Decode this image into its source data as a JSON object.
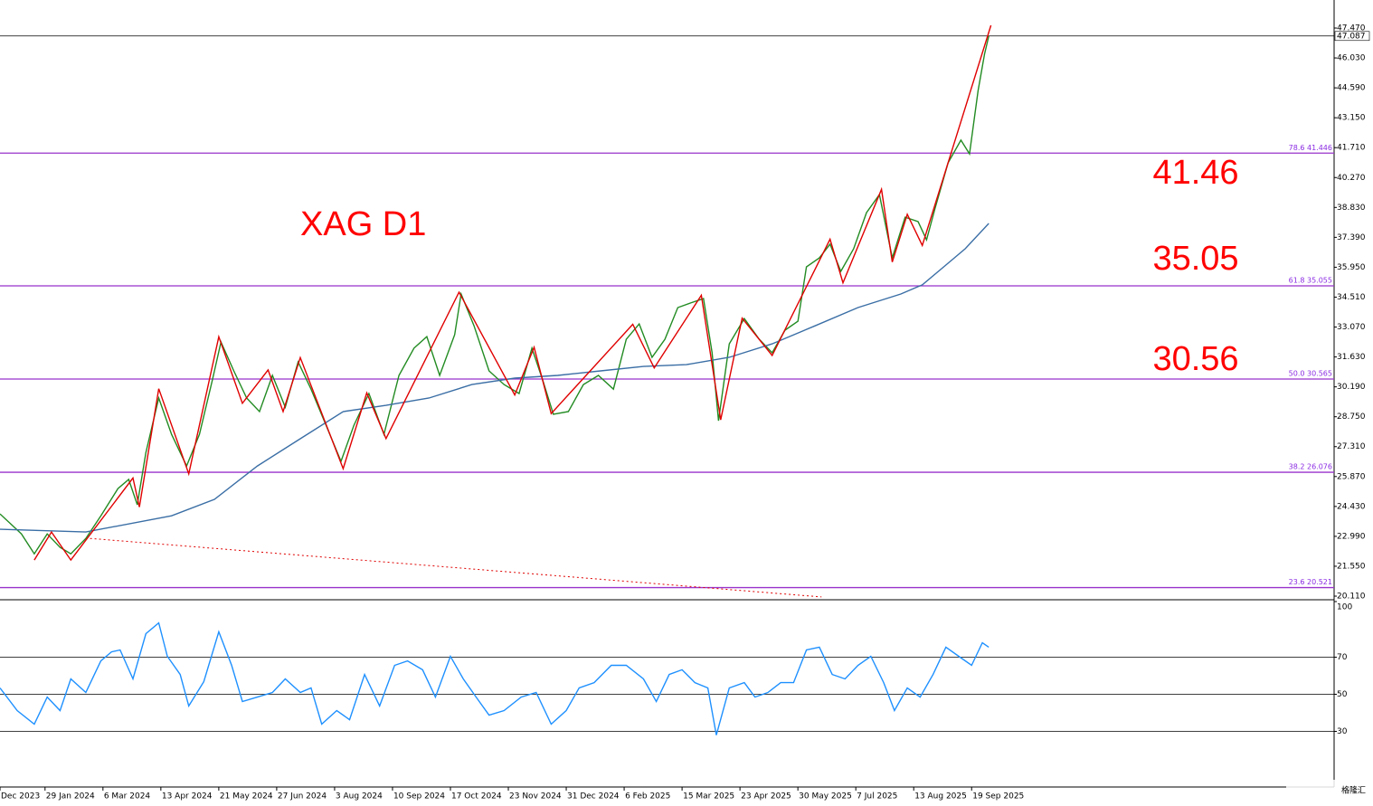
{
  "chart_data": [
    {
      "type": "line",
      "title": "XAG D1",
      "x": [
        0,
        10,
        16,
        22,
        28,
        33,
        40,
        47,
        55,
        60,
        64,
        68,
        74,
        80,
        87,
        93,
        99,
        103,
        109,
        115,
        121,
        127,
        133,
        139,
        145,
        152,
        159,
        165,
        172,
        179,
        186,
        193,
        199,
        205,
        212,
        215,
        221,
        228,
        235,
        242,
        248,
        253,
        258,
        265,
        272,
        279,
        286,
        292,
        298,
        304,
        310,
        316,
        322,
        328,
        332,
        335,
        340,
        347,
        354,
        360,
        366,
        372,
        376,
        382,
        387,
        392,
        398,
        404,
        410,
        416,
        422,
        428,
        432,
        436,
        442,
        448,
        452,
        456,
        459,
        461
      ],
      "series": [
        {
          "color": "#228b22",
          "values": [
            24.07,
            23.11,
            22.15,
            23.11,
            22.46,
            22.15,
            22.89,
            23.98,
            25.29,
            25.73,
            24.51,
            27.03,
            29.65,
            27.9,
            26.38,
            27.9,
            30.52,
            32.35,
            30.96,
            29.65,
            29.0,
            30.74,
            29.21,
            31.39,
            30.08,
            28.34,
            26.6,
            28.34,
            29.87,
            27.9,
            30.74,
            32.05,
            32.61,
            30.74,
            32.7,
            34.66,
            33.13,
            30.96,
            30.3,
            29.87,
            32.05,
            30.52,
            28.87,
            29.0,
            30.3,
            30.74,
            30.08,
            32.48,
            33.22,
            31.61,
            32.48,
            34.01,
            34.23,
            34.44,
            31.83,
            28.56,
            32.26,
            33.48,
            32.48,
            31.83,
            32.92,
            33.35,
            35.97,
            36.4,
            37.06,
            35.75,
            36.84,
            38.58,
            39.45,
            36.4,
            38.36,
            38.15,
            37.27,
            38.8,
            40.98,
            42.07,
            41.41,
            44.46,
            46.21,
            47.08
          ]
        },
        {
          "color": "#3a6ea5",
          "x": [
            0,
            40,
            80,
            100,
            120,
            140,
            160,
            180,
            200,
            220,
            240,
            260,
            280,
            300,
            320,
            340,
            360,
            380,
            400,
            420,
            430,
            440,
            450,
            461
          ],
          "values": [
            23.33,
            23.2,
            23.98,
            24.77,
            26.38,
            27.69,
            29.0,
            29.3,
            29.65,
            30.3,
            30.61,
            30.74,
            30.96,
            31.17,
            31.26,
            31.61,
            32.26,
            33.13,
            34.01,
            34.66,
            35.1,
            35.97,
            36.84,
            38.06
          ]
        },
        {
          "color": "#e00000",
          "x": [
            16,
            24,
            33,
            62,
            65,
            74,
            88,
            102,
            113,
            125,
            132,
            140,
            160,
            171,
            180,
            214,
            240,
            249,
            257,
            295,
            305,
            327,
            336,
            346,
            360,
            387,
            393,
            411,
            416,
            423,
            430,
            462
          ],
          "values": [
            21.85,
            23.2,
            21.85,
            25.8,
            24.4,
            30.1,
            26.0,
            32.6,
            29.4,
            31.0,
            29.0,
            31.6,
            26.25,
            29.9,
            27.7,
            34.75,
            29.8,
            32.1,
            28.9,
            33.2,
            31.1,
            34.6,
            28.6,
            33.5,
            31.7,
            37.3,
            35.2,
            39.7,
            36.2,
            38.5,
            37.0,
            47.6
          ]
        },
        {
          "color": "#e00000",
          "dash": true,
          "x": [
            42,
            383
          ],
          "values": [
            22.89,
            20.07
          ]
        }
      ],
      "xlim": [
        0,
        622
      ],
      "ylim": [
        19.98,
        48.82
      ],
      "yticks": [
        {
          "value": 47.47,
          "label": "47.470"
        },
        {
          "value": 46.03,
          "label": "46.030"
        },
        {
          "value": 44.59,
          "label": "44.590"
        },
        {
          "value": 43.15,
          "label": "43.150"
        },
        {
          "value": 41.71,
          "label": "41.710"
        },
        {
          "value": 40.27,
          "label": "40.270"
        },
        {
          "value": 38.83,
          "label": "38.830"
        },
        {
          "value": 37.39,
          "label": "37.390"
        },
        {
          "value": 35.95,
          "label": "35.950"
        },
        {
          "value": 34.51,
          "label": "34.510"
        },
        {
          "value": 33.07,
          "label": "33.070"
        },
        {
          "value": 31.63,
          "label": "31.630"
        },
        {
          "value": 30.19,
          "label": "30.190"
        },
        {
          "value": 28.75,
          "label": "28.750"
        },
        {
          "value": 27.31,
          "label": "27.310"
        },
        {
          "value": 25.87,
          "label": "25.870"
        },
        {
          "value": 24.43,
          "label": "24.430"
        },
        {
          "value": 22.99,
          "label": "22.990"
        },
        {
          "value": 21.55,
          "label": "21.550"
        },
        {
          "value": 20.11,
          "label": "20.110"
        }
      ],
      "ygrid": false,
      "levels_color": "#9932cc",
      "levels": [
        {
          "value": 41.446,
          "label": "78.6 41.446"
        },
        {
          "value": 35.055,
          "label": "61.8 35.055"
        },
        {
          "value": 30.565,
          "label": "50.0 30.565"
        },
        {
          "value": 26.076,
          "label": "38.2 26.076"
        },
        {
          "value": 20.521,
          "label": "23.6 20.521"
        }
      ],
      "current_price": 47.087,
      "annotations": [
        41.46,
        35.05,
        30.56
      ]
    },
    {
      "type": "line",
      "x": [
        0,
        8,
        16,
        22,
        28,
        33,
        40,
        47,
        52,
        56,
        62,
        68,
        74,
        78,
        84,
        88,
        95,
        102,
        108,
        113,
        120,
        127,
        133,
        140,
        145,
        150,
        157,
        163,
        170,
        177,
        184,
        190,
        197,
        203,
        210,
        216,
        222,
        228,
        235,
        243,
        250,
        257,
        264,
        270,
        277,
        285,
        292,
        300,
        306,
        312,
        318,
        324,
        330,
        334,
        340,
        347,
        352,
        358,
        364,
        370,
        376,
        382,
        388,
        394,
        400,
        406,
        412,
        417,
        423,
        429,
        435,
        441,
        447,
        453,
        458,
        461
      ],
      "series": [
        {
          "color": "#1e90ff",
          "values": [
            53.4,
            41.2,
            33.9,
            48.5,
            41.2,
            58.3,
            51.0,
            68.0,
            72.9,
            73.9,
            58.3,
            82.7,
            88.5,
            70.5,
            60.7,
            43.7,
            56.8,
            83.7,
            65.6,
            46.1,
            48.5,
            51.0,
            58.3,
            51.0,
            53.4,
            33.9,
            41.2,
            36.3,
            60.7,
            43.7,
            65.6,
            68.0,
            63.2,
            48.5,
            70.5,
            58.3,
            48.5,
            38.8,
            41.2,
            48.5,
            51.0,
            33.9,
            41.2,
            53.4,
            56.3,
            65.6,
            65.6,
            58.3,
            46.1,
            60.7,
            63.2,
            56.3,
            53.4,
            28.0,
            53.4,
            56.3,
            48.5,
            51.0,
            56.3,
            56.3,
            73.9,
            75.4,
            60.7,
            58.3,
            65.6,
            70.5,
            56.3,
            41.2,
            53.4,
            48.5,
            60.7,
            75.4,
            70.5,
            65.6,
            77.8,
            75.4
          ]
        }
      ],
      "xlim": [
        0,
        622
      ],
      "ylim": [
        0,
        100
      ],
      "yticks": [
        100,
        70,
        50,
        30
      ],
      "ygrid": true,
      "xticks": [
        {
          "value": 0,
          "label": "Dec 2023"
        },
        {
          "value": 21,
          "label": "29 Jan 2024"
        },
        {
          "value": 48,
          "label": "6 Mar 2024"
        },
        {
          "value": 75,
          "label": "13 Apr 2024"
        },
        {
          "value": 102,
          "label": "21 May 2024"
        },
        {
          "value": 129,
          "label": "27 Jun 2024"
        },
        {
          "value": 156,
          "label": "3 Aug 2024"
        },
        {
          "value": 183,
          "label": "10 Sep 2024"
        },
        {
          "value": 210,
          "label": "17 Oct 2024"
        },
        {
          "value": 237,
          "label": "23 Nov 2024"
        },
        {
          "value": 264,
          "label": "31 Dec 2024"
        },
        {
          "value": 291,
          "label": "6 Feb 2025"
        },
        {
          "value": 318,
          "label": "15 Mar 2025"
        },
        {
          "value": 345,
          "label": "23 Apr 2025"
        },
        {
          "value": 372,
          "label": "30 May 2025"
        },
        {
          "value": 399,
          "label": "7 Jul 2025"
        },
        {
          "value": 426,
          "label": "13 Aug 2025"
        },
        {
          "value": 453,
          "label": "19 Sep 2025"
        }
      ]
    }
  ],
  "watermark": "格隆汇"
}
